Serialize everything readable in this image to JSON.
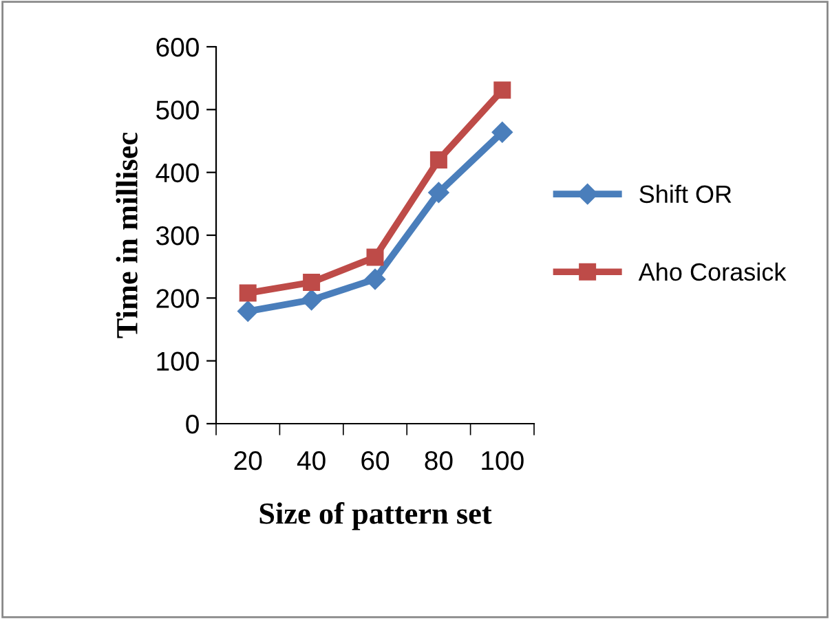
{
  "chart_data": {
    "type": "line",
    "xlabel": "Size of pattern set",
    "ylabel": "Time in millisec",
    "categories": [
      "20",
      "40",
      "60",
      "80",
      "100"
    ],
    "series": [
      {
        "name": "Shift OR",
        "color": "#4a7ebb",
        "marker": "diamond",
        "values": [
          179,
          197,
          230,
          368,
          464
        ]
      },
      {
        "name": "Aho Corasick",
        "color": "#be4b48",
        "marker": "square",
        "values": [
          208,
          225,
          265,
          420,
          531
        ]
      }
    ],
    "ylim": [
      0,
      600
    ],
    "yticks": [
      0,
      100,
      200,
      300,
      400,
      500,
      600
    ],
    "grid": false,
    "legend": "right",
    "line_style": "solid"
  }
}
